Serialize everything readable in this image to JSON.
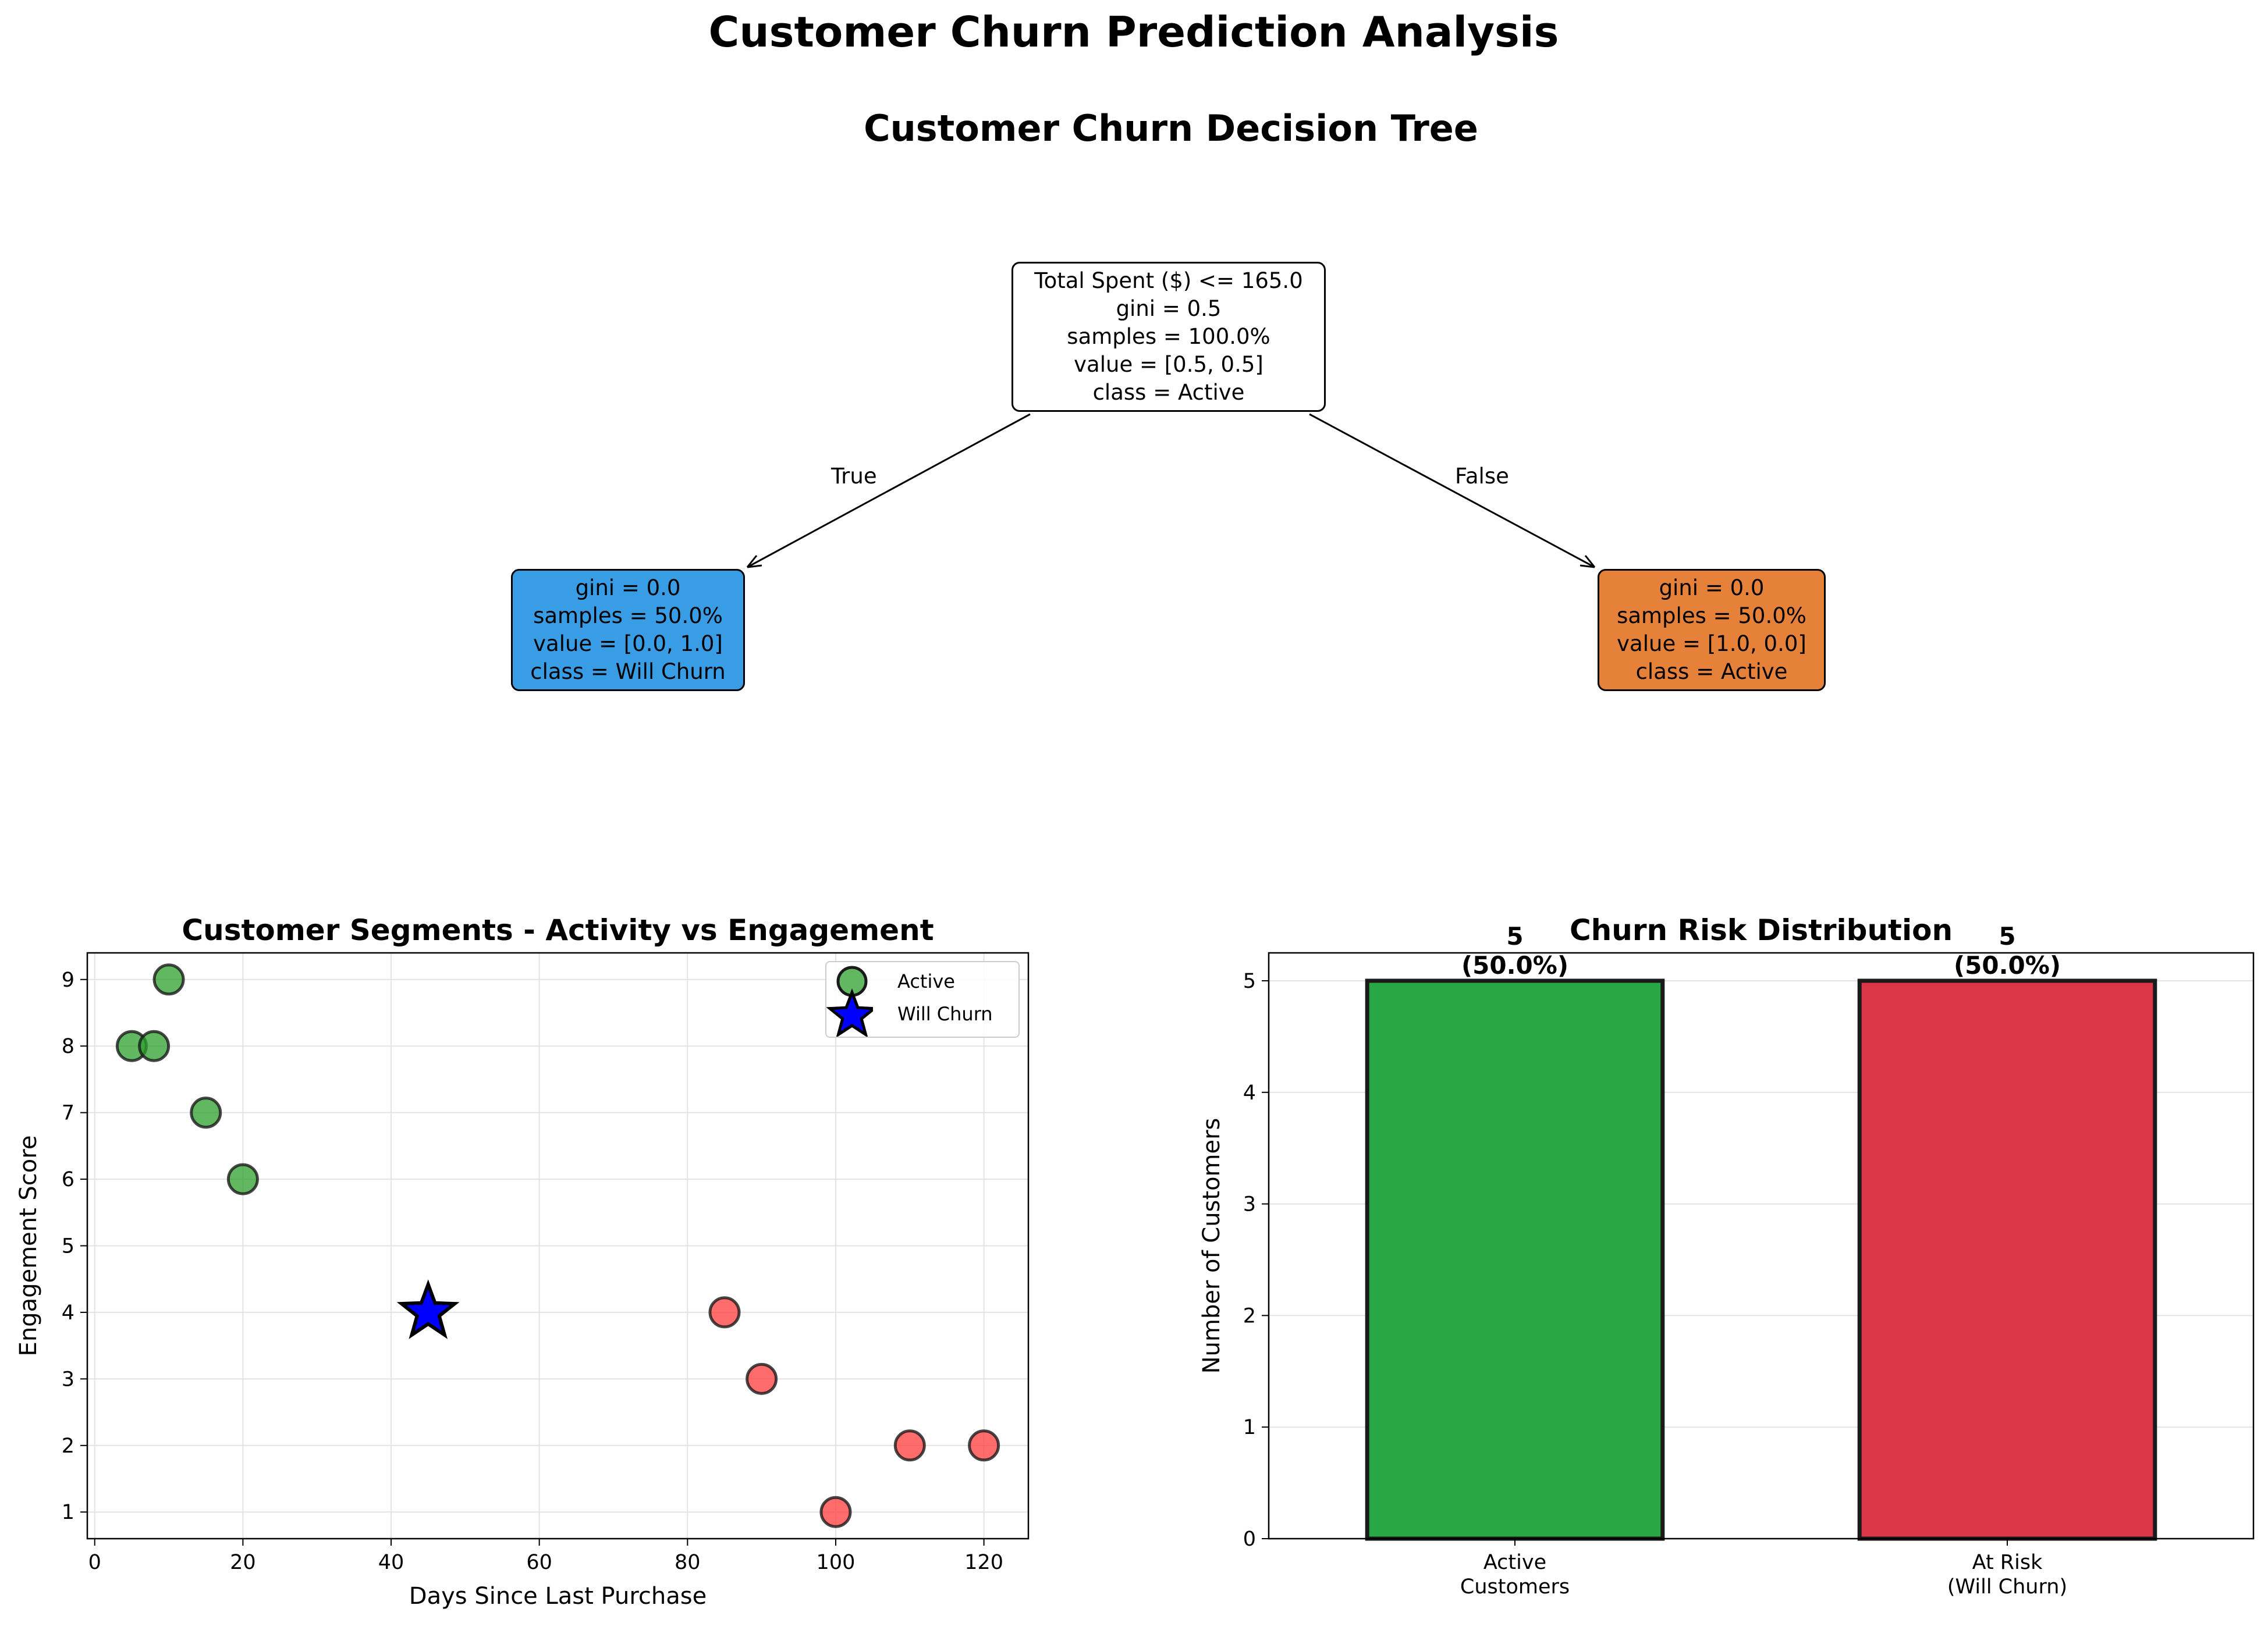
{
  "figure": {
    "suptitle": "Customer Churn Prediction Analysis"
  },
  "tree": {
    "title": "Customer Churn Decision Tree",
    "root": {
      "lines": [
        "Total Spent ($) <= 165.0",
        "gini = 0.5",
        "samples = 100.0%",
        "value = [0.5, 0.5]",
        "class = Active"
      ],
      "color": "#ffffff"
    },
    "left": {
      "lines": [
        "gini = 0.0",
        "samples = 50.0%",
        "value = [0.0, 1.0]",
        "class = Will Churn"
      ],
      "color": "#399de5"
    },
    "right": {
      "lines": [
        "gini = 0.0",
        "samples = 50.0%",
        "value = [1.0, 0.0]",
        "class = Active"
      ],
      "color": "#e58139"
    },
    "edge_true": "True",
    "edge_false": "False"
  },
  "chart_data": [
    {
      "type": "scatter",
      "title": "Customer Segments - Activity vs Engagement",
      "xlabel": "Days Since Last Purchase",
      "ylabel": "Engagement Score",
      "xlim": [
        -1,
        126
      ],
      "ylim": [
        0.6,
        9.4
      ],
      "xticks": [
        0,
        20,
        40,
        60,
        80,
        100,
        120
      ],
      "yticks": [
        1,
        2,
        3,
        4,
        5,
        6,
        7,
        8,
        9
      ],
      "grid": true,
      "legend_position": "top-right",
      "series": [
        {
          "name": "Active",
          "color": "#2ca02c",
          "marker": "circle",
          "points": [
            [
              5,
              8
            ],
            [
              8,
              8
            ],
            [
              10,
              9
            ],
            [
              15,
              7
            ],
            [
              20,
              6
            ]
          ]
        },
        {
          "name": "",
          "color": "#ff3b3b",
          "marker": "circle",
          "points": [
            [
              85,
              4
            ],
            [
              90,
              3
            ],
            [
              100,
              1
            ],
            [
              110,
              2
            ],
            [
              120,
              2
            ]
          ]
        },
        {
          "name": "Will Churn",
          "color": "#0000ff",
          "marker": "star",
          "points": [
            [
              45,
              4
            ]
          ]
        }
      ]
    },
    {
      "type": "bar",
      "title": "Churn Risk Distribution",
      "xlabel": "",
      "ylabel": "Number of Customers",
      "ylim": [
        0,
        5.25
      ],
      "yticks": [
        0,
        1,
        2,
        3,
        4,
        5
      ],
      "grid": true,
      "categories": [
        [
          "Active",
          "Customers"
        ],
        [
          "At Risk",
          "(Will Churn)"
        ]
      ],
      "values": [
        5,
        5
      ],
      "labels": [
        [
          "5",
          "(50.0%)"
        ],
        [
          "5",
          "(50.0%)"
        ]
      ],
      "colors": [
        "#28a745",
        "#dc3545"
      ]
    }
  ]
}
